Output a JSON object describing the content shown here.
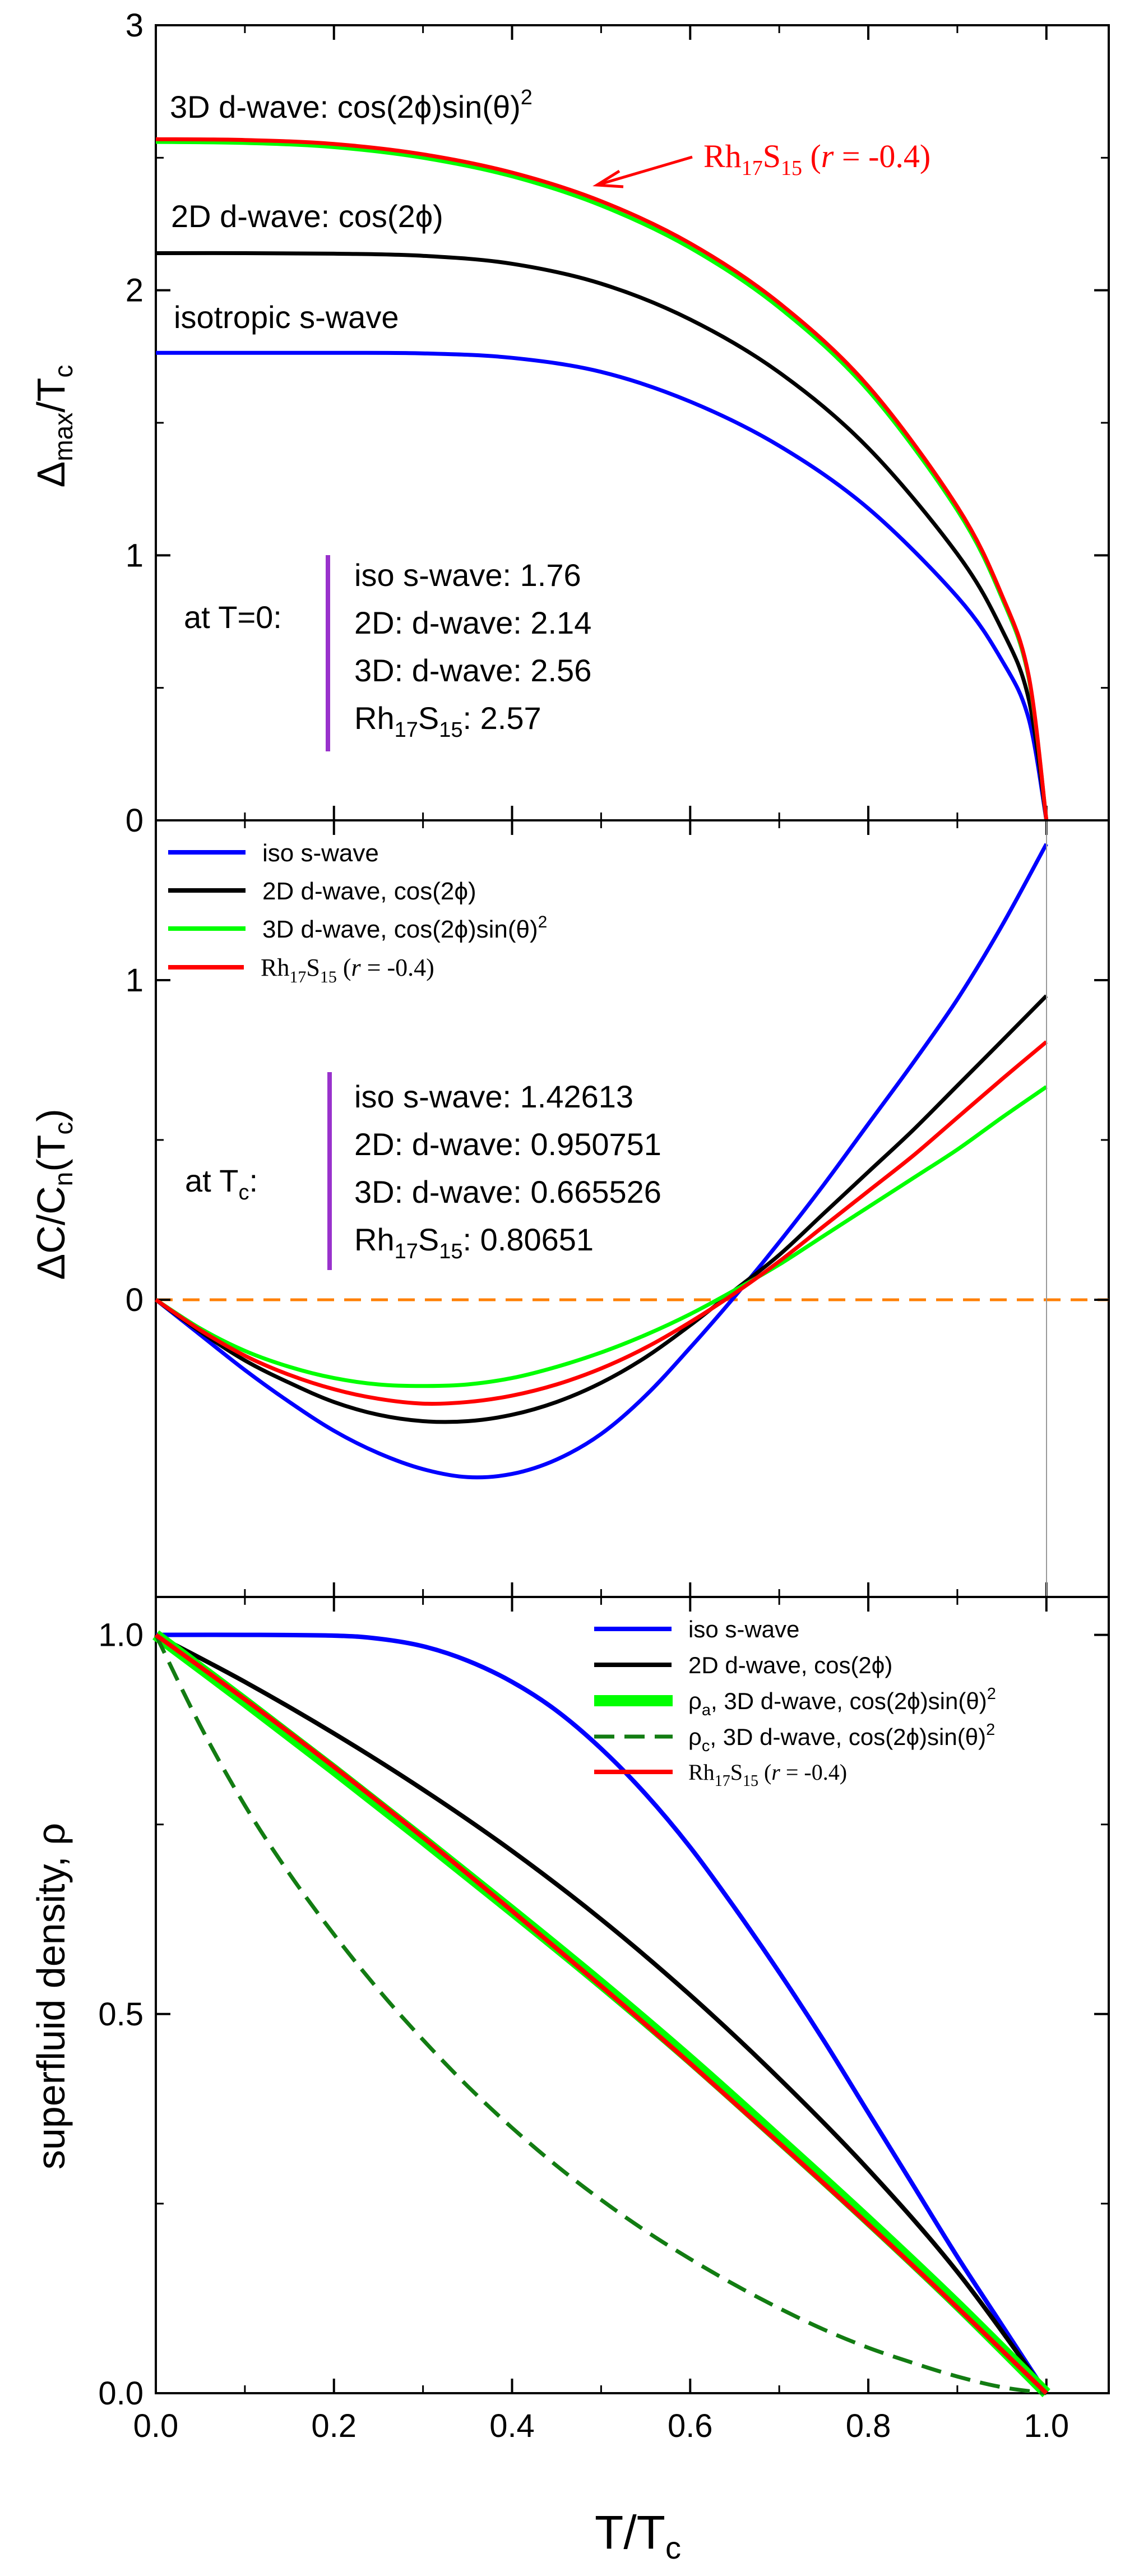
{
  "chart_data": [
    {
      "type": "line",
      "ylabel": "Δmax/Tc",
      "ylabel_main": "Δ",
      "ylabel_sub1": "max",
      "ylabel_mid": "/T",
      "ylabel_sub2": "c",
      "xlim": [
        0,
        1.07
      ],
      "ylim": [
        0,
        3
      ],
      "yticks": [
        "0",
        "1",
        "2",
        "3"
      ],
      "series": [
        {
          "key": "iso",
          "color": "#0000ff",
          "values": [
            [
              0,
              1.764
            ],
            [
              0.1,
              1.764
            ],
            [
              0.2,
              1.764
            ],
            [
              0.3,
              1.762
            ],
            [
              0.4,
              1.745
            ],
            [
              0.5,
              1.692
            ],
            [
              0.6,
              1.58
            ],
            [
              0.7,
              1.413
            ],
            [
              0.8,
              1.177
            ],
            [
              0.9,
              0.843
            ],
            [
              0.95,
              0.604
            ],
            [
              0.98,
              0.385
            ],
            [
              1.0,
              0
            ]
          ]
        },
        {
          "key": "d2",
          "color": "#000000",
          "values": [
            [
              0,
              2.14
            ],
            [
              0.1,
              2.14
            ],
            [
              0.2,
              2.138
            ],
            [
              0.3,
              2.13
            ],
            [
              0.4,
              2.1
            ],
            [
              0.5,
              2.025
            ],
            [
              0.6,
              1.89
            ],
            [
              0.7,
              1.69
            ],
            [
              0.8,
              1.405
            ],
            [
              0.9,
              1.005
            ],
            [
              0.95,
              0.72
            ],
            [
              0.98,
              0.46
            ],
            [
              1.0,
              0
            ]
          ]
        },
        {
          "key": "d3",
          "color": "#00ff00",
          "values": [
            [
              0,
              2.56
            ],
            [
              0.1,
              2.556
            ],
            [
              0.2,
              2.54
            ],
            [
              0.3,
              2.5
            ],
            [
              0.4,
              2.43
            ],
            [
              0.5,
              2.32
            ],
            [
              0.6,
              2.16
            ],
            [
              0.7,
              1.935
            ],
            [
              0.8,
              1.622
            ],
            [
              0.9,
              1.17
            ],
            [
              0.95,
              0.84
            ],
            [
              0.98,
              0.54
            ],
            [
              1.0,
              0
            ]
          ]
        },
        {
          "key": "rh",
          "color": "#ff0000",
          "values": [
            [
              0,
              2.57
            ],
            [
              0.1,
              2.567
            ],
            [
              0.2,
              2.552
            ],
            [
              0.3,
              2.513
            ],
            [
              0.4,
              2.444
            ],
            [
              0.5,
              2.336
            ],
            [
              0.6,
              2.177
            ],
            [
              0.7,
              1.952
            ],
            [
              0.8,
              1.638
            ],
            [
              0.9,
              1.183
            ],
            [
              0.95,
              0.85
            ],
            [
              0.98,
              0.548
            ],
            [
              1.0,
              0
            ]
          ]
        }
      ],
      "labels": {
        "d3": "3D d-wave: cos(2ϕ)sin(θ)",
        "d3_sup": "2",
        "d2": "2D d-wave: cos(2ϕ)",
        "iso": "isotropic s-wave",
        "rh_main": "Rh",
        "rh_sub1": "17",
        "rh_mid": "S",
        "rh_sub2": "15",
        "rh_paren": " (",
        "rh_r": "r",
        "rh_tail": " = -0.4)"
      },
      "inset": {
        "prefix": "at T=0:",
        "lines": [
          "iso s-wave: 1.76",
          "2D: d-wave: 2.14",
          "3D: d-wave: 2.56"
        ],
        "last_main": "Rh",
        "last_sub1": "17",
        "last_mid": "S",
        "last_sub2": "15",
        "last_val": ": 2.57"
      }
    },
    {
      "type": "line",
      "ylabel": "ΔC/Cn(Tc)",
      "ylabel_main": "ΔC/C",
      "ylabel_sub1": "n",
      "ylabel_mid": "(T",
      "ylabel_sub2": "c",
      "ylabel_end": ")",
      "xlim": [
        0,
        1.07
      ],
      "ylim": [
        -0.93,
        1.5
      ],
      "yticks": [
        "0",
        "1"
      ],
      "reference_line": {
        "y": 0,
        "color": "#ff7f00",
        "style": "dashed"
      },
      "series": [
        {
          "key": "iso",
          "color": "#0000ff",
          "values": [
            [
              0,
              0
            ],
            [
              0.05,
              -0.11
            ],
            [
              0.1,
              -0.22
            ],
            [
              0.15,
              -0.32
            ],
            [
              0.2,
              -0.41
            ],
            [
              0.25,
              -0.48
            ],
            [
              0.3,
              -0.53
            ],
            [
              0.35,
              -0.555
            ],
            [
              0.4,
              -0.545
            ],
            [
              0.45,
              -0.5
            ],
            [
              0.5,
              -0.42
            ],
            [
              0.55,
              -0.3
            ],
            [
              0.6,
              -0.15
            ],
            [
              0.65,
              0.01
            ],
            [
              0.7,
              0.18
            ],
            [
              0.75,
              0.36
            ],
            [
              0.8,
              0.55
            ],
            [
              0.85,
              0.74
            ],
            [
              0.9,
              0.94
            ],
            [
              0.95,
              1.17
            ],
            [
              1.0,
              1.426
            ]
          ]
        },
        {
          "key": "d2",
          "color": "#000000",
          "values": [
            [
              0,
              0
            ],
            [
              0.05,
              -0.1
            ],
            [
              0.1,
              -0.19
            ],
            [
              0.15,
              -0.26
            ],
            [
              0.2,
              -0.32
            ],
            [
              0.25,
              -0.36
            ],
            [
              0.3,
              -0.38
            ],
            [
              0.35,
              -0.38
            ],
            [
              0.4,
              -0.36
            ],
            [
              0.45,
              -0.32
            ],
            [
              0.5,
              -0.26
            ],
            [
              0.55,
              -0.18
            ],
            [
              0.6,
              -0.08
            ],
            [
              0.65,
              0.03
            ],
            [
              0.7,
              0.14
            ],
            [
              0.75,
              0.27
            ],
            [
              0.8,
              0.4
            ],
            [
              0.85,
              0.53
            ],
            [
              0.9,
              0.67
            ],
            [
              0.95,
              0.81
            ],
            [
              1.0,
              0.951
            ]
          ]
        },
        {
          "key": "d3",
          "color": "#00ff00",
          "values": [
            [
              0,
              0
            ],
            [
              0.05,
              -0.09
            ],
            [
              0.1,
              -0.16
            ],
            [
              0.15,
              -0.21
            ],
            [
              0.2,
              -0.245
            ],
            [
              0.25,
              -0.265
            ],
            [
              0.3,
              -0.27
            ],
            [
              0.35,
              -0.265
            ],
            [
              0.4,
              -0.245
            ],
            [
              0.45,
              -0.21
            ],
            [
              0.5,
              -0.165
            ],
            [
              0.55,
              -0.11
            ],
            [
              0.6,
              -0.045
            ],
            [
              0.65,
              0.03
            ],
            [
              0.7,
              0.11
            ],
            [
              0.75,
              0.2
            ],
            [
              0.8,
              0.29
            ],
            [
              0.85,
              0.38
            ],
            [
              0.9,
              0.47
            ],
            [
              0.95,
              0.57
            ],
            [
              1.0,
              0.666
            ]
          ]
        },
        {
          "key": "rh",
          "color": "#ff0000",
          "values": [
            [
              0,
              0
            ],
            [
              0.05,
              -0.095
            ],
            [
              0.1,
              -0.175
            ],
            [
              0.15,
              -0.235
            ],
            [
              0.2,
              -0.28
            ],
            [
              0.25,
              -0.31
            ],
            [
              0.3,
              -0.325
            ],
            [
              0.35,
              -0.32
            ],
            [
              0.4,
              -0.3
            ],
            [
              0.45,
              -0.265
            ],
            [
              0.5,
              -0.215
            ],
            [
              0.55,
              -0.15
            ],
            [
              0.6,
              -0.07
            ],
            [
              0.65,
              0.02
            ],
            [
              0.7,
              0.12
            ],
            [
              0.75,
              0.23
            ],
            [
              0.8,
              0.34
            ],
            [
              0.85,
              0.45
            ],
            [
              0.9,
              0.57
            ],
            [
              0.95,
              0.69
            ],
            [
              1.0,
              0.807
            ]
          ]
        }
      ],
      "legend": [
        {
          "key": "iso",
          "color": "#0000ff",
          "text": "iso s-wave"
        },
        {
          "key": "d2",
          "color": "#000000",
          "text": "2D d-wave, cos(2ϕ)"
        },
        {
          "key": "d3",
          "color": "#00ff00",
          "text": "3D d-wave, cos(2ϕ)sin(θ)",
          "sup": "2"
        }
      ],
      "legend_rh": {
        "main": "Rh",
        "sub1": "17",
        "mid": "S",
        "sub2": "15",
        "paren": " (",
        "r": "r",
        "tail": " = -0.4)"
      },
      "inset": {
        "prefix_main": "at T",
        "prefix_sub": "c",
        "prefix_end": ":",
        "lines": [
          "iso s-wave: 1.42613",
          "2D: d-wave: 0.950751",
          "3D: d-wave: 0.665526"
        ],
        "last_main": "Rh",
        "last_sub1": "17",
        "last_mid": "S",
        "last_sub2": "15",
        "last_val": ": 0.80651"
      }
    },
    {
      "type": "line",
      "ylabel": "superfluid density, ρ",
      "xlabel_main": "T/T",
      "xlabel_sub": "c",
      "xlim": [
        0,
        1.07
      ],
      "ylim": [
        0,
        1.05
      ],
      "yticks": [
        "0.0",
        "0.5",
        "1.0"
      ],
      "xticks": [
        "0.0",
        "0.2",
        "0.4",
        "0.6",
        "0.8",
        "1.0"
      ],
      "series": [
        {
          "key": "iso",
          "color": "#0000ff",
          "width": 8,
          "values": [
            [
              0,
              1.0
            ],
            [
              0.1,
              1.0
            ],
            [
              0.2,
              0.999
            ],
            [
              0.25,
              0.995
            ],
            [
              0.3,
              0.985
            ],
            [
              0.35,
              0.966
            ],
            [
              0.4,
              0.938
            ],
            [
              0.45,
              0.9
            ],
            [
              0.5,
              0.85
            ],
            [
              0.55,
              0.79
            ],
            [
              0.6,
              0.72
            ],
            [
              0.65,
              0.64
            ],
            [
              0.7,
              0.555
            ],
            [
              0.75,
              0.465
            ],
            [
              0.8,
              0.37
            ],
            [
              0.85,
              0.275
            ],
            [
              0.9,
              0.18
            ],
            [
              0.95,
              0.09
            ],
            [
              1.0,
              0
            ]
          ]
        },
        {
          "key": "d2",
          "color": "#000000",
          "width": 8,
          "values": [
            [
              0,
              1.0
            ],
            [
              0.1,
              0.938
            ],
            [
              0.2,
              0.87
            ],
            [
              0.3,
              0.796
            ],
            [
              0.4,
              0.715
            ],
            [
              0.5,
              0.625
            ],
            [
              0.6,
              0.525
            ],
            [
              0.7,
              0.415
            ],
            [
              0.8,
              0.295
            ],
            [
              0.9,
              0.16
            ],
            [
              1.0,
              0
            ]
          ]
        },
        {
          "key": "d3a",
          "color": "#00ff00",
          "width": 20,
          "values": [
            [
              0,
              1.0
            ],
            [
              0.1,
              0.912
            ],
            [
              0.2,
              0.822
            ],
            [
              0.3,
              0.73
            ],
            [
              0.4,
              0.636
            ],
            [
              0.5,
              0.54
            ],
            [
              0.6,
              0.44
            ],
            [
              0.7,
              0.335
            ],
            [
              0.8,
              0.228
            ],
            [
              0.9,
              0.117
            ],
            [
              1.0,
              0
            ]
          ]
        },
        {
          "key": "d3c",
          "color": "#127c12",
          "width": 7,
          "dashed": true,
          "values": [
            [
              0,
              1.0
            ],
            [
              0.05,
              0.88
            ],
            [
              0.1,
              0.775
            ],
            [
              0.15,
              0.685
            ],
            [
              0.2,
              0.605
            ],
            [
              0.25,
              0.532
            ],
            [
              0.3,
              0.466
            ],
            [
              0.35,
              0.405
            ],
            [
              0.4,
              0.35
            ],
            [
              0.45,
              0.3
            ],
            [
              0.5,
              0.255
            ],
            [
              0.55,
              0.214
            ],
            [
              0.6,
              0.177
            ],
            [
              0.65,
              0.143
            ],
            [
              0.7,
              0.112
            ],
            [
              0.75,
              0.084
            ],
            [
              0.8,
              0.06
            ],
            [
              0.85,
              0.04
            ],
            [
              0.9,
              0.022
            ],
            [
              0.95,
              0.008
            ],
            [
              1.0,
              0
            ]
          ]
        },
        {
          "key": "rh",
          "color": "#ff0000",
          "width": 8,
          "values": [
            [
              0,
              1.0
            ],
            [
              0.1,
              0.915
            ],
            [
              0.2,
              0.826
            ],
            [
              0.3,
              0.733
            ],
            [
              0.4,
              0.636
            ],
            [
              0.5,
              0.537
            ],
            [
              0.6,
              0.435
            ],
            [
              0.7,
              0.33
            ],
            [
              0.8,
              0.223
            ],
            [
              0.9,
              0.113
            ],
            [
              1.0,
              0
            ]
          ]
        }
      ],
      "legend": [
        {
          "key": "iso",
          "color": "#0000ff",
          "text": "iso s-wave"
        },
        {
          "key": "d2",
          "color": "#000000",
          "text": "2D d-wave, cos(2ϕ)"
        }
      ],
      "legend_rho_a": {
        "symbol": "ρ",
        "sub": "a",
        "text": ", 3D d-wave, cos(2ϕ)sin(θ)",
        "sup": "2"
      },
      "legend_rho_c": {
        "symbol": "ρ",
        "sub": "c",
        "text": ", 3D d-wave, cos(2ϕ)sin(θ)",
        "sup": "2"
      },
      "legend_rh": {
        "main": "Rh",
        "sub1": "17",
        "mid": "S",
        "sub2": "15",
        "paren": " (",
        "r": "r",
        "tail": " = -0.4)"
      }
    }
  ]
}
